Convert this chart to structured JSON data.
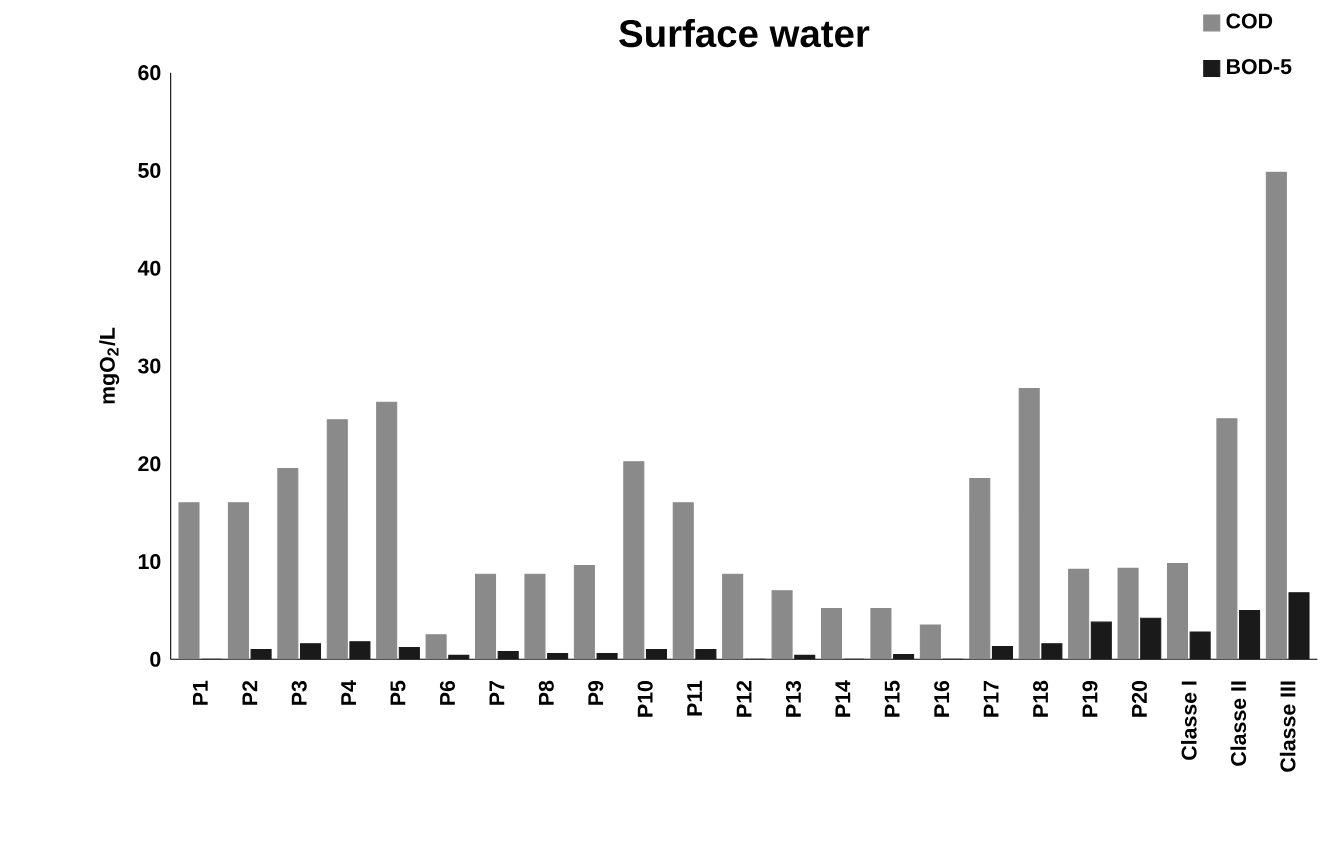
{
  "chart_data": {
    "type": "bar",
    "title": "Surface water",
    "ylabel": "mgO$_{2}$/L",
    "categories": [
      "P1",
      "P2",
      "P3",
      "P4",
      "P5",
      "P6",
      "P7",
      "P8",
      "P9",
      "P10",
      "P11",
      "P12",
      "P13",
      "P14",
      "P15",
      "P16",
      "P17",
      "P18",
      "P19",
      "P20",
      "Classe I",
      "Classe II",
      "Classe III"
    ],
    "series": [
      {
        "name": "COD",
        "color": "#8a8a8a",
        "values": [
          16,
          16,
          19.5,
          24.5,
          26.3,
          2.5,
          8.7,
          8.7,
          9.6,
          20.2,
          16,
          8.7,
          7,
          5.2,
          5.2,
          3.5,
          18.5,
          27.7,
          9.2,
          9.3,
          9.8,
          24.6,
          49.8
        ]
      },
      {
        "name": "BOD-5",
        "color": "#1a1a1a",
        "values": [
          0,
          1,
          1.6,
          1.8,
          1.2,
          0.4,
          0.8,
          0.6,
          0.6,
          1,
          1,
          0,
          0.4,
          0,
          0.5,
          0,
          1.3,
          1.6,
          3.8,
          4.2,
          2.8,
          5,
          6.8
        ]
      }
    ],
    "ylim": [
      0,
      60
    ],
    "yticks": [
      0,
      10,
      20,
      30,
      40,
      50,
      60
    ],
    "grid": false,
    "legend": "top right"
  }
}
